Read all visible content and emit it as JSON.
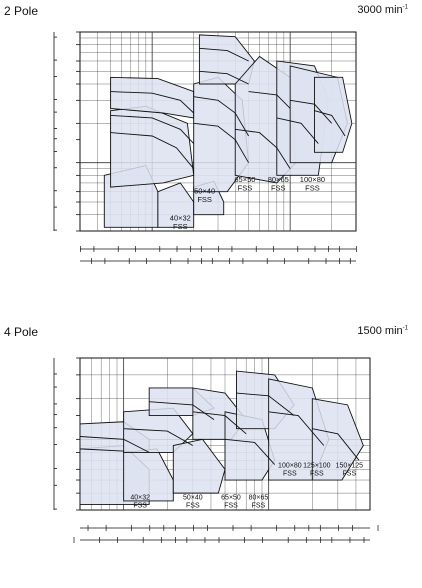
{
  "colors": {
    "fill": "#dde2f1",
    "ink": "#111111",
    "grid": "#333333"
  },
  "charts": [
    {
      "pole_label": "2 Pole",
      "speed_label": "3000 min",
      "speed_sup": "-1",
      "ylabel": "Total head",
      "ft_unit": "ft",
      "m_unit": "m",
      "flow_unit": "m³/min",
      "usgpm_unit": "USGPM",
      "impgpm_unit": "Imp. GPM",
      "xlabel": "Capacity",
      "m_ticks": [
        "100",
        "80",
        "60",
        "50",
        "40",
        "30",
        "20",
        "15",
        "10",
        "8",
        "6",
        "5",
        "4",
        "3"
      ],
      "ft_ticks": [
        "300",
        "200",
        "150",
        "100",
        "80",
        "60",
        "50",
        "40",
        "30",
        "20",
        "15",
        "10"
      ],
      "flow_ticks": [
        "0.03",
        "0.05",
        "0.1",
        "0.2",
        "0.3",
        "0.5",
        "1",
        "2",
        "3"
      ],
      "usgpm_ticks": [
        "8",
        "10",
        "15",
        "20",
        "30",
        "40",
        "50",
        "60",
        "80",
        "100",
        "150",
        "200",
        "300",
        "400",
        "500",
        "600",
        "800"
      ],
      "impgpm_ticks": [
        "8",
        "10",
        "15",
        "20",
        "30",
        "40",
        "50",
        "60",
        "80",
        "100",
        "150",
        "200",
        "300",
        "400",
        "500",
        "600"
      ],
      "labels": [
        "J515",
        "J511",
        "H575",
        "H515",
        "H511",
        "H57.5",
        "H55.5",
        "H53.7",
        "G52.2",
        "G52.2",
        "G51.5",
        "G51.5",
        "G53.7",
        "G55.5",
        "G57.5",
        "G515",
        "G511",
        "F5.75",
        "F5.75",
        "F51.5",
        "F52.2",
        "F53.7",
        "F55.5",
        "F57.5",
        "F52.2",
        "E51.5",
        "E5.75",
        "F5.4",
        "F5.4",
        "50×40 FSS",
        "65×50 FSS",
        "80×65 FSS",
        "100×80 FSS",
        "32×32FSS",
        "40×32 FSS"
      ]
    },
    {
      "pole_label": "4 Pole",
      "speed_label": "1500 min",
      "speed_sup": "-1",
      "ylabel": "Total head",
      "ft_unit": "ft",
      "m_unit": "m",
      "flow_unit": "m³/min",
      "usgpm_unit": "USGPM",
      "impgpm_unit": "Imp. GPM",
      "xlabel": "Capacity",
      "m_ticks": [
        "40",
        "30",
        "20",
        "15",
        "10",
        "8",
        "6",
        "5",
        "4",
        "3"
      ],
      "ft_ticks": [
        "100",
        "80",
        "60",
        "50",
        "40",
        "30",
        "20",
        "15",
        "10"
      ],
      "flow_ticks": [
        "0.05",
        "0.1",
        "0.2",
        "0.3",
        "0.5",
        "1",
        "2",
        "3",
        "5"
      ],
      "usgpm_ticks": [
        "15",
        "20",
        "30",
        "40",
        "50",
        "60",
        "80",
        "100",
        "150",
        "200",
        "300",
        "400",
        "500",
        "600",
        "800",
        "1000",
        "1500"
      ],
      "impgpm_ticks": [
        "10",
        "15",
        "20",
        "30",
        "40",
        "50",
        "60",
        "80",
        "100",
        "150",
        "200",
        "300",
        "400",
        "500",
        "600",
        "800",
        "1000"
      ],
      "labels": [
        "4K530",
        "4K520",
        "4K515",
        "4K511",
        "4K57.5",
        "4J55.5",
        "4J57.5",
        "4J53.7",
        "4J52.2",
        "4J51.5",
        "4H5.75",
        "4H5.75",
        "4H5.4",
        "4G5.4",
        "4G5.75",
        "4H51.5",
        "4J52.2",
        "4H53.7",
        "4J53.7",
        "4G52.2",
        "4G51.5",
        "4J55.5",
        "4H55.5",
        "4H57.5",
        "4J511",
        "4K55.5",
        "4J515",
        "4H511",
        "4G511",
        "4G57.5",
        "4G53.7",
        "4G55.5",
        "100×80 FSS",
        "125×100 FSS",
        "150×125 FSS",
        "40×32 FSS",
        "50×40 FSS",
        "65×50 FSS",
        "80×65 FSS"
      ]
    }
  ],
  "chart_data": [
    {
      "type": "table",
      "title": "2 Pole 3000 min-1",
      "xlabel": "Capacity",
      "ylabel": "Total head",
      "x_unit": "m3/min",
      "y_unit": "m",
      "x_scale": "log",
      "y_scale": "log",
      "xlim": [
        0.03,
        3
      ],
      "ylim": [
        3,
        100
      ],
      "grid": true,
      "models": [
        "J515",
        "J511",
        "H575",
        "H515",
        "H511",
        "H57.5",
        "H55.5",
        "H53.7",
        "G52.2",
        "G51.5",
        "G53.7",
        "G55.5",
        "G57.5",
        "G515",
        "G511",
        "F5.75",
        "F51.5",
        "F52.2",
        "F53.7",
        "F55.5",
        "F57.5",
        "E51.5",
        "E5.75",
        "F5.4"
      ],
      "fss_models": [
        "32×32FSS",
        "40×32 FSS",
        "50×40 FSS",
        "65×50 FSS",
        "80×65 FSS",
        "100×80 FSS"
      ]
    },
    {
      "type": "table",
      "title": "4 Pole 1500 min-1",
      "xlabel": "Capacity",
      "ylabel": "Total head",
      "x_unit": "m3/min",
      "y_unit": "m",
      "x_scale": "log",
      "y_scale": "log",
      "xlim": [
        0.05,
        5
      ],
      "ylim": [
        3,
        40
      ],
      "grid": true,
      "models": [
        "4K530",
        "4K520",
        "4K515",
        "4K511",
        "4K57.5",
        "4K55.5",
        "4J515",
        "4J511",
        "4J57.5",
        "4J55.5",
        "4J53.7",
        "4J52.2",
        "4J51.5",
        "4H511",
        "4H57.5",
        "4H55.5",
        "4H53.7",
        "4H51.5",
        "4H5.75",
        "4H5.4",
        "4G511",
        "4G57.5",
        "4G55.5",
        "4G53.7",
        "4G52.2",
        "4G51.5",
        "4G5.75",
        "4G5.4"
      ],
      "fss_models": [
        "40×32 FSS",
        "50×40 FSS",
        "65×50 FSS",
        "80×65 FSS",
        "100×80 FSS",
        "125×100 FSS",
        "150×125 FSS"
      ]
    }
  ]
}
